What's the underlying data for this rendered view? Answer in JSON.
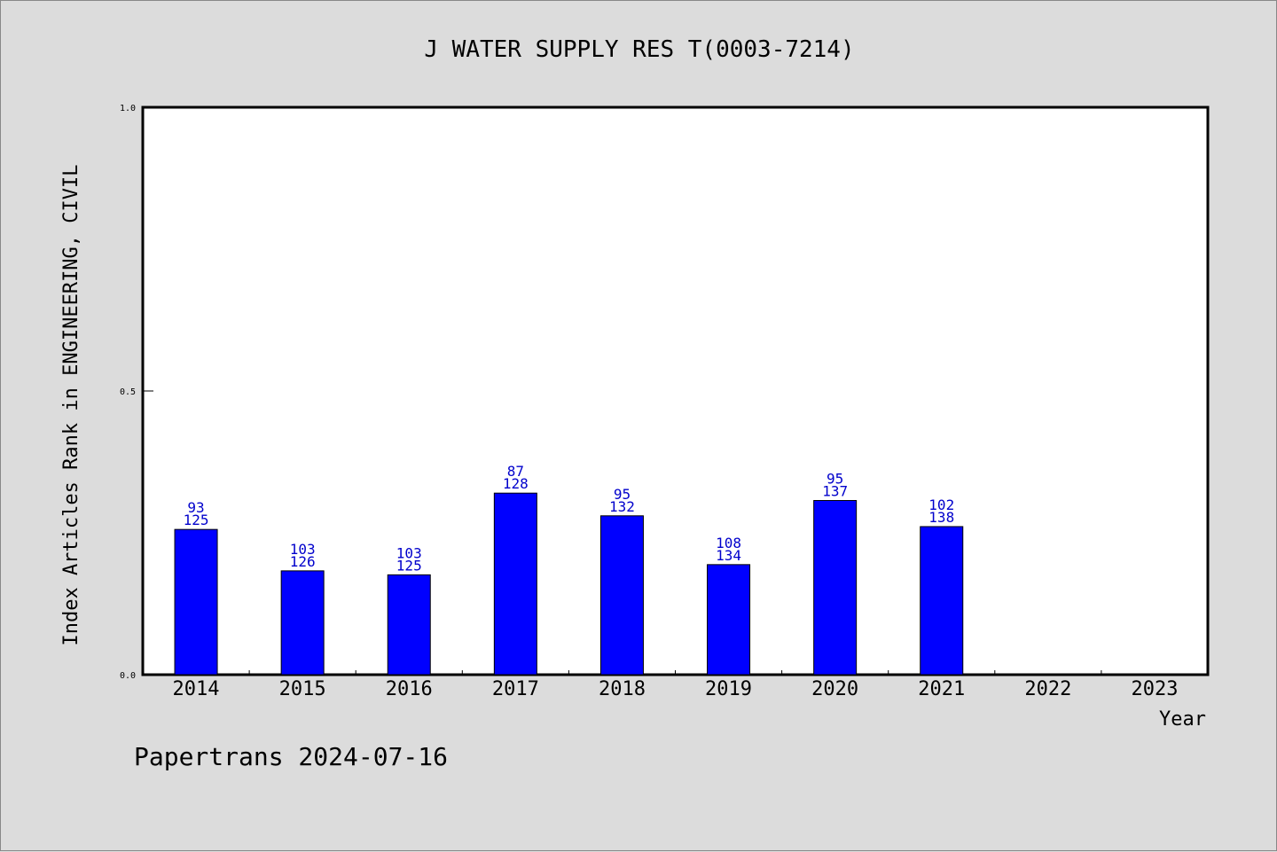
{
  "chart_data": {
    "type": "bar",
    "title": "J WATER SUPPLY RES T(0003-7214)",
    "xlabel": "Year",
    "ylabel": "Index Articles Rank in ENGINEERING, CIVIL",
    "ylim": [
      0,
      1
    ],
    "yticks": [
      "0.0",
      "0.5",
      "1.0"
    ],
    "categories": [
      "2014",
      "2015",
      "2016",
      "2017",
      "2018",
      "2019",
      "2020",
      "2021",
      "2022",
      "2023"
    ],
    "values": [
      0.256,
      0.183,
      0.176,
      0.32,
      0.28,
      0.194,
      0.307,
      0.261,
      null,
      null
    ],
    "labels_top": [
      "93",
      "103",
      "103",
      "87",
      "95",
      "108",
      "95",
      "102",
      "",
      ""
    ],
    "labels_bottom": [
      "125",
      "126",
      "125",
      "128",
      "132",
      "134",
      "137",
      "138",
      "",
      ""
    ],
    "bar_color": "#0000ff",
    "label_color": "#0000cc",
    "grid": false
  },
  "footer": "Papertrans 2024-07-16"
}
